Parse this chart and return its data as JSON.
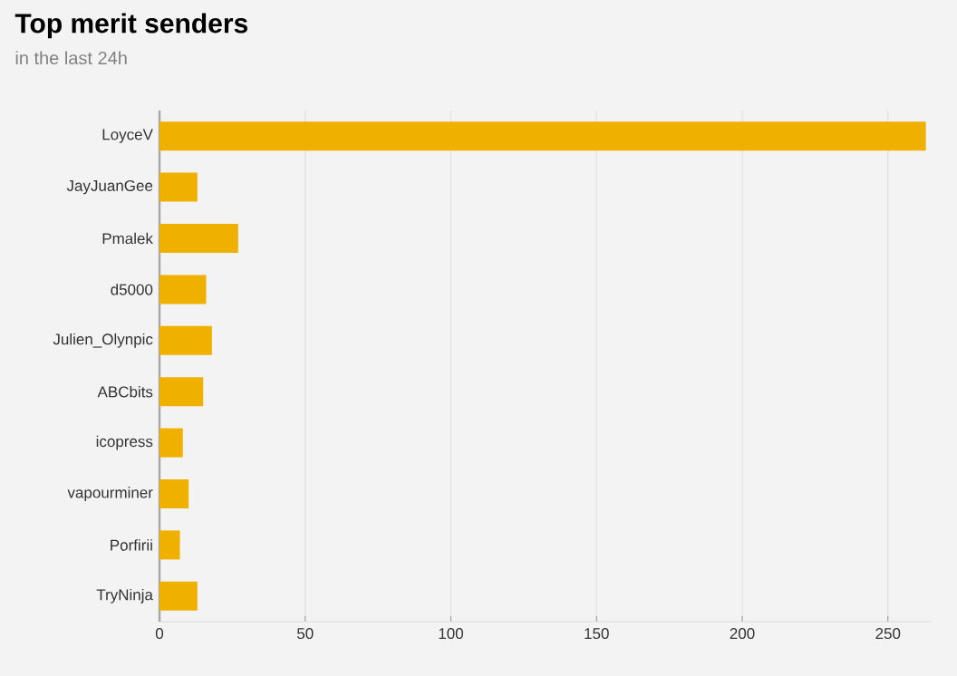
{
  "chart_data": {
    "type": "bar",
    "orientation": "horizontal",
    "title": "Top merit senders",
    "subtitle": "in the last 24h",
    "categories": [
      "LoyceV",
      "JayJuanGee",
      "Pmalek",
      "d5000",
      "Julien_Olynpic",
      "ABCbits",
      "icopress",
      "vapourminer",
      "Porfirii",
      "TryNinja"
    ],
    "values": [
      263,
      13,
      27,
      16,
      18,
      15,
      8,
      10,
      7,
      13
    ],
    "color": "#f0b000",
    "xlim": [
      0,
      265
    ],
    "xticks": [
      0,
      50,
      100,
      150,
      200,
      250
    ],
    "grid": "x"
  }
}
